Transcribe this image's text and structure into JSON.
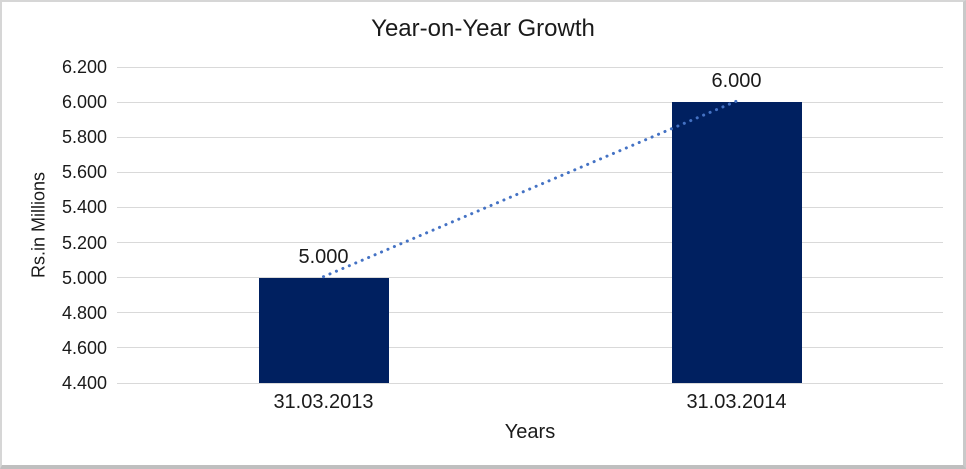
{
  "chart_data": {
    "type": "bar",
    "title": "Year-on-Year Growth",
    "xlabel": "Years",
    "ylabel": "Rs.in Millions",
    "categories": [
      "31.03.2013",
      "31.03.2014"
    ],
    "values": [
      5000,
      6000
    ],
    "value_labels": [
      "5.000",
      "6.000"
    ],
    "ylim": [
      4400,
      6200
    ],
    "ytick_step": 200,
    "ytick_labels": [
      "4.400",
      "4.600",
      "4.800",
      "5.000",
      "5.200",
      "5.400",
      "5.600",
      "5.800",
      "6.000",
      "6.200"
    ],
    "grid": true,
    "legend": "none",
    "bar_color": "#002060",
    "gridline_color": "#d9d9d9",
    "axis_text_color": "#1a1a1a",
    "background": "#ffffff",
    "frame_border_color": "#c9c9c9",
    "trendline": {
      "type": "linear",
      "style": "dotted",
      "color": "#4472C4"
    }
  }
}
